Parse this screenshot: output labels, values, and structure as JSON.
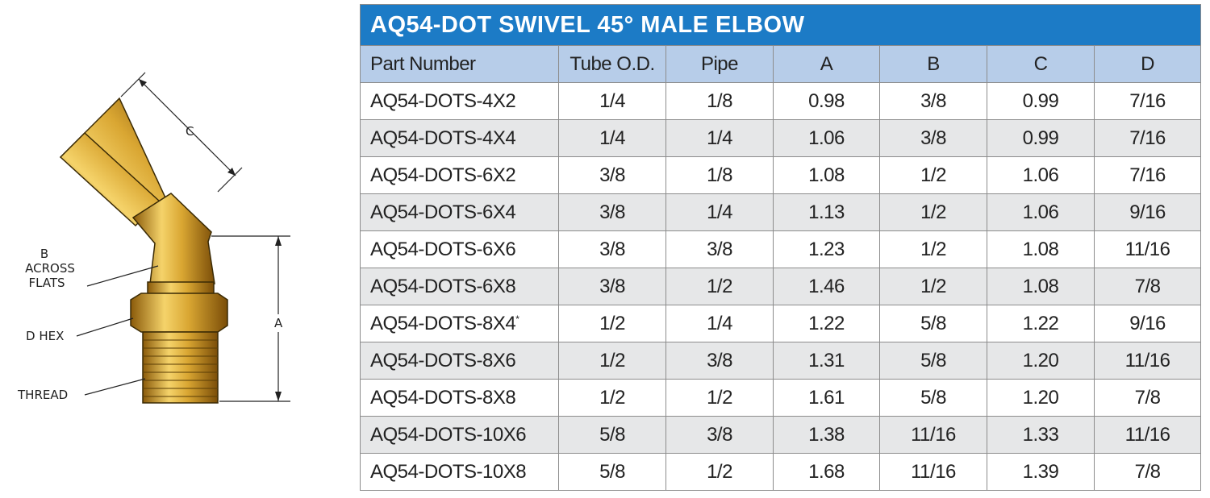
{
  "diagram": {
    "labels": {
      "c": "C",
      "b": "B",
      "across": "ACROSS",
      "flats": "FLATS",
      "d_hex": "D HEX",
      "thread": "THREAD",
      "a": "A"
    }
  },
  "table": {
    "title": "AQ54-DOT SWIVEL 45° MALE ELBOW",
    "columns": [
      "Part Number",
      "Tube O.D.",
      "Pipe",
      "A",
      "B",
      "C",
      "D"
    ],
    "rows": [
      [
        "AQ54-DOTS-4X2",
        "1/4",
        "1/8",
        "0.98",
        "3/8",
        "0.99",
        "7/16"
      ],
      [
        "AQ54-DOTS-4X4",
        "1/4",
        "1/4",
        "1.06",
        "3/8",
        "0.99",
        "7/16"
      ],
      [
        "AQ54-DOTS-6X2",
        "3/8",
        "1/8",
        "1.08",
        "1/2",
        "1.06",
        "7/16"
      ],
      [
        "AQ54-DOTS-6X4",
        "3/8",
        "1/4",
        "1.13",
        "1/2",
        "1.06",
        "9/16"
      ],
      [
        "AQ54-DOTS-6X6",
        "3/8",
        "3/8",
        "1.23",
        "1/2",
        "1.08",
        "11/16"
      ],
      [
        "AQ54-DOTS-6X8",
        "3/8",
        "1/2",
        "1.46",
        "1/2",
        "1.08",
        "7/8"
      ],
      [
        {
          "text": "AQ54-DOTS-8X4",
          "sup": "*"
        },
        "1/2",
        "1/4",
        "1.22",
        "5/8",
        "1.22",
        "9/16"
      ],
      [
        "AQ54-DOTS-8X6",
        "1/2",
        "3/8",
        "1.31",
        "5/8",
        "1.20",
        "11/16"
      ],
      [
        "AQ54-DOTS-8X8",
        "1/2",
        "1/2",
        "1.61",
        "5/8",
        "1.20",
        "7/8"
      ],
      [
        "AQ54-DOTS-10X6",
        "5/8",
        "3/8",
        "1.38",
        "11/16",
        "1.33",
        "11/16"
      ],
      [
        "AQ54-DOTS-10X8",
        "5/8",
        "1/2",
        "1.68",
        "11/16",
        "1.39",
        "7/8"
      ]
    ]
  }
}
